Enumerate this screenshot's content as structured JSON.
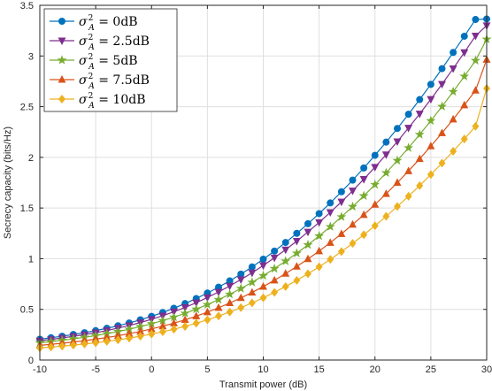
{
  "chart_data": {
    "type": "line",
    "title": "",
    "xlabel": "Transmit power (dB)",
    "ylabel": "Secrecy capacity (bits/Hz)",
    "xlim": [
      -10,
      30
    ],
    "ylim": [
      0,
      3.5
    ],
    "x_ticks": [
      -10,
      -5,
      0,
      5,
      10,
      15,
      20,
      25,
      30
    ],
    "y_ticks": [
      0,
      0.5,
      1,
      1.5,
      2,
      2.5,
      3,
      3.5
    ],
    "x_tick_labels": [
      "-10",
      "-5",
      "0",
      "5",
      "10",
      "15",
      "20",
      "25",
      "30"
    ],
    "y_tick_labels": [
      "0",
      "0.5",
      "1",
      "1.5",
      "2",
      "2.5",
      "3",
      "3.5"
    ],
    "grid": true,
    "legend_position": "top-left",
    "x": [
      -10,
      -9,
      -8,
      -7,
      -6,
      -5,
      -4,
      -3,
      -2,
      -1,
      0,
      1,
      2,
      3,
      4,
      5,
      6,
      7,
      8,
      9,
      10,
      11,
      12,
      13,
      14,
      15,
      16,
      17,
      18,
      19,
      20,
      21,
      22,
      23,
      24,
      25,
      26,
      27,
      28,
      29,
      30
    ],
    "series": [
      {
        "name": "σ_A^2 = 0dB",
        "legend_base": "σ",
        "legend_sup": "2",
        "legend_sub": "A",
        "legend_rest": " = 0dB",
        "color": "#0072bd",
        "marker": "circle",
        "values": [
          0.205,
          0.22,
          0.235,
          0.252,
          0.27,
          0.29,
          0.313,
          0.338,
          0.366,
          0.397,
          0.431,
          0.469,
          0.511,
          0.557,
          0.607,
          0.661,
          0.719,
          0.781,
          0.848,
          0.919,
          0.995,
          1.075,
          1.16,
          1.25,
          1.345,
          1.445,
          1.55,
          1.66,
          1.775,
          1.895,
          2.02,
          2.15,
          2.285,
          2.425,
          2.57,
          2.72,
          2.875,
          3.035,
          3.195,
          3.36,
          3.365
        ]
      },
      {
        "name": "σ_A^2 = 2.5dB",
        "legend_base": "σ",
        "legend_sup": "2",
        "legend_sub": "A",
        "legend_rest": " = 2.5dB",
        "color": "#7e2f8e",
        "marker": "triangle-down",
        "values": [
          0.19,
          0.203,
          0.218,
          0.234,
          0.251,
          0.27,
          0.291,
          0.315,
          0.341,
          0.37,
          0.402,
          0.437,
          0.476,
          0.519,
          0.566,
          0.617,
          0.672,
          0.731,
          0.794,
          0.861,
          0.933,
          1.009,
          1.089,
          1.174,
          1.264,
          1.358,
          1.457,
          1.561,
          1.67,
          1.784,
          1.903,
          2.027,
          2.156,
          2.29,
          2.429,
          2.573,
          2.722,
          2.876,
          3.035,
          3.199,
          3.3
        ]
      },
      {
        "name": "σ_A^2 = 5dB",
        "legend_base": "σ",
        "legend_sup": "2",
        "legend_sub": "A",
        "legend_rest": " = 5dB",
        "color": "#77ac30",
        "marker": "star",
        "values": [
          0.17,
          0.182,
          0.195,
          0.209,
          0.224,
          0.241,
          0.26,
          0.281,
          0.304,
          0.33,
          0.358,
          0.389,
          0.423,
          0.461,
          0.502,
          0.547,
          0.596,
          0.649,
          0.706,
          0.767,
          0.832,
          0.902,
          0.976,
          1.054,
          1.137,
          1.224,
          1.316,
          1.413,
          1.514,
          1.62,
          1.731,
          1.847,
          1.968,
          2.094,
          2.225,
          2.361,
          2.502,
          2.648,
          2.799,
          2.955,
          3.165
        ]
      },
      {
        "name": "σ_A^2 = 7.5dB",
        "legend_base": "σ",
        "legend_sup": "2",
        "legend_sub": "A",
        "legend_rest": " = 7.5dB",
        "color": "#d95319",
        "marker": "triangle-up",
        "values": [
          0.145,
          0.155,
          0.166,
          0.178,
          0.191,
          0.206,
          0.222,
          0.24,
          0.26,
          0.282,
          0.307,
          0.334,
          0.364,
          0.397,
          0.433,
          0.473,
          0.516,
          0.563,
          0.613,
          0.667,
          0.725,
          0.787,
          0.853,
          0.923,
          0.997,
          1.075,
          1.158,
          1.245,
          1.337,
          1.433,
          1.534,
          1.64,
          1.75,
          1.865,
          1.985,
          2.11,
          2.24,
          2.375,
          2.515,
          2.66,
          2.965
        ]
      },
      {
        "name": "σ_A^2 = 10dB",
        "legend_base": "σ",
        "legend_sup": "2",
        "legend_sub": "A",
        "legend_rest": " = 10dB",
        "color": "#edb120",
        "marker": "diamond",
        "values": [
          0.12,
          0.128,
          0.137,
          0.147,
          0.158,
          0.17,
          0.184,
          0.199,
          0.216,
          0.235,
          0.256,
          0.279,
          0.304,
          0.332,
          0.363,
          0.397,
          0.434,
          0.474,
          0.517,
          0.564,
          0.614,
          0.668,
          0.725,
          0.786,
          0.851,
          0.92,
          0.993,
          1.07,
          1.151,
          1.236,
          1.325,
          1.418,
          1.515,
          1.616,
          1.721,
          1.83,
          1.943,
          2.06,
          2.181,
          2.306,
          2.68
        ]
      }
    ]
  }
}
